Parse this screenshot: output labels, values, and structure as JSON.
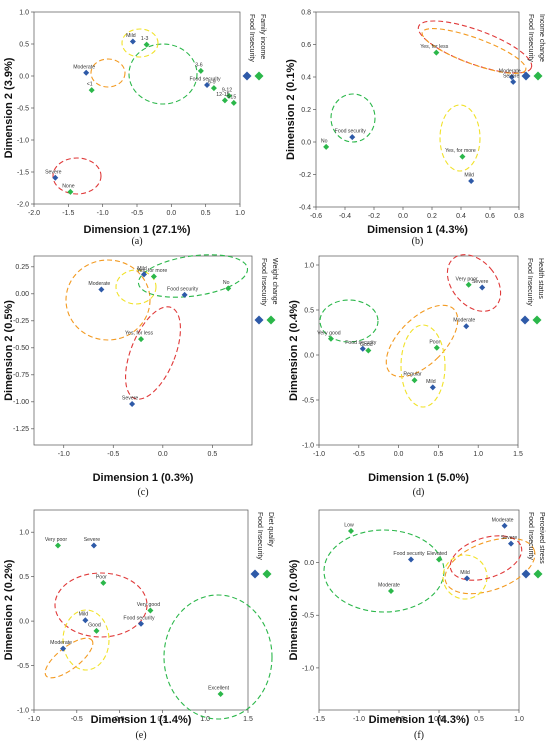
{
  "colors": {
    "food_insecurity": "#2e5aa8",
    "other_variable": "#2bb74a"
  },
  "chart_data": [
    {
      "panel": "(a)",
      "type": "scatter",
      "xlabel": "Dimension  1 (27.1%)",
      "ylabel": "Dimension  2 (3.9%)",
      "xlim": [
        -2.0,
        1.0
      ],
      "ylim": [
        -2.0,
        1.0
      ],
      "xticks": [
        "-2.0",
        "-1.5",
        "-1.0",
        "-0.5",
        "0.0",
        "0.5",
        "1.0"
      ],
      "yticks": [
        "1.0",
        "0.5",
        "0.0",
        "-0.5",
        "-1.0",
        "-1.5",
        "-2.0"
      ],
      "legend": [
        "Food Insecurity",
        "Family income"
      ],
      "series": [
        {
          "name": "Food Insecurity",
          "points": [
            {
              "label": "Mild",
              "x": -0.56,
              "y": 0.54
            },
            {
              "label": "Moderate",
              "x": -1.24,
              "y": 0.05
            },
            {
              "label": "Food security",
              "x": 0.52,
              "y": -0.14
            },
            {
              "label": "Severe",
              "x": -1.69,
              "y": -1.59
            }
          ]
        },
        {
          "name": "Family income",
          "points": [
            {
              "label": "1-3",
              "x": -0.36,
              "y": 0.49
            },
            {
              "label": "<1",
              "x": -1.16,
              "y": -0.22
            },
            {
              "label": "3-6",
              "x": 0.43,
              "y": 0.08
            },
            {
              "label": "6-9",
              "x": 0.62,
              "y": -0.19
            },
            {
              "label": "9-12",
              "x": 0.84,
              "y": -0.31
            },
            {
              "label": "12-15",
              "x": 0.78,
              "y": -0.38
            },
            {
              "label": ">15",
              "x": 0.91,
              "y": -0.42
            },
            {
              "label": "None",
              "x": -1.47,
              "y": -1.81
            }
          ]
        }
      ]
    },
    {
      "panel": "(b)",
      "type": "scatter",
      "xlabel": "Dimension  1 (4.3%)",
      "ylabel": "Dimension  2 (0.1%)",
      "xlim": [
        -0.6,
        0.8
      ],
      "ylim": [
        -0.4,
        0.8
      ],
      "xticks": [
        "-0.6",
        "-0.4",
        "-0.2",
        "0.0",
        "0.2",
        "0.4",
        "0.6",
        "0.8"
      ],
      "yticks": [
        "0.8",
        "0.6",
        "0.4",
        "0.2",
        "0.0",
        "-0.2",
        "-0.4"
      ],
      "legend": [
        "Food Insecurity",
        "Income change"
      ],
      "series": [
        {
          "name": "Food Insecurity",
          "points": [
            {
              "label": "Moderate",
              "x": 0.75,
              "y": 0.4
            },
            {
              "label": "Food security",
              "x": -0.35,
              "y": 0.03
            },
            {
              "label": "Mild",
              "x": 0.47,
              "y": -0.24
            },
            {
              "label": "Severe",
              "x": 0.76,
              "y": 0.37
            }
          ]
        },
        {
          "name": "Income change",
          "points": [
            {
              "label": "Yes, for less",
              "x": 0.23,
              "y": 0.55
            },
            {
              "label": "No",
              "x": -0.53,
              "y": -0.03
            },
            {
              "label": "Yes, for more",
              "x": 0.41,
              "y": -0.09
            }
          ]
        }
      ]
    },
    {
      "panel": "(c)",
      "type": "scatter",
      "xlabel": "Dimension  1 (0.3%)",
      "ylabel": "Dimension  2 (0.5%)",
      "xlim": [
        -1.3,
        0.9
      ],
      "ylim": [
        -1.4,
        0.35
      ],
      "xticks": [
        "-1.0",
        "-0.5",
        "0.0",
        "0.5"
      ],
      "yticks": [
        "0.25",
        "0.00",
        "-0.25",
        "-0.50",
        "-0.75",
        "-1.00",
        "-1.25"
      ],
      "legend": [
        "Food Insecurity",
        "Weight change"
      ],
      "series": [
        {
          "name": "Food Insecurity",
          "points": [
            {
              "label": "Mild",
              "x": -0.19,
              "y": 0.18
            },
            {
              "label": "Moderate",
              "x": -0.62,
              "y": 0.04
            },
            {
              "label": "Food security",
              "x": 0.22,
              "y": -0.01
            },
            {
              "label": "Severe",
              "x": -0.31,
              "y": -1.02
            }
          ]
        },
        {
          "name": "Weight change",
          "points": [
            {
              "label": "Yes, for more",
              "x": -0.09,
              "y": 0.16
            },
            {
              "label": "No",
              "x": 0.66,
              "y": 0.05
            },
            {
              "label": "Yes, for less",
              "x": -0.22,
              "y": -0.42
            }
          ]
        }
      ]
    },
    {
      "panel": "(d)",
      "type": "scatter",
      "xlabel": "Dimension  1 (5.0%)",
      "ylabel": "Dimension  2 (0.4%)",
      "xlim": [
        -1.0,
        1.5
      ],
      "ylim": [
        -1.0,
        1.1
      ],
      "xticks": [
        "-1.0",
        "-0.5",
        "0.0",
        "0.5",
        "1.0",
        "1.5"
      ],
      "yticks": [
        "1.0",
        "0.5",
        "0.0",
        "-0.5",
        "-1.0"
      ],
      "legend": [
        "Food Insecurity",
        "Health status"
      ],
      "series": [
        {
          "name": "Food Insecurity",
          "points": [
            {
              "label": "Severe",
              "x": 1.05,
              "y": 0.75
            },
            {
              "label": "Moderate",
              "x": 0.85,
              "y": 0.32
            },
            {
              "label": "Food security",
              "x": -0.45,
              "y": 0.07
            },
            {
              "label": "Mild",
              "x": 0.43,
              "y": -0.36
            }
          ]
        },
        {
          "name": "Health status",
          "points": [
            {
              "label": "Very poor",
              "x": 0.88,
              "y": 0.78
            },
            {
              "label": "Very good",
              "x": -0.85,
              "y": 0.18
            },
            {
              "label": "Good",
              "x": -0.38,
              "y": 0.05
            },
            {
              "label": "Poor",
              "x": 0.48,
              "y": 0.08
            },
            {
              "label": "Regular",
              "x": 0.2,
              "y": -0.28
            }
          ]
        }
      ]
    },
    {
      "panel": "(e)",
      "type": "scatter",
      "xlabel": "Dimension  1 (1.4%)",
      "ylabel": "Dimension  2 (0.2%)",
      "xlim": [
        -1.0,
        1.5
      ],
      "ylim": [
        -1.0,
        1.25
      ],
      "xticks": [
        "-1.0",
        "-0.5",
        "0.0",
        "0.5",
        "1.0",
        "1.5"
      ],
      "yticks": [
        "1.0",
        "0.5",
        "0.0",
        "-0.5",
        "-1.0"
      ],
      "legend": [
        "Food Insecurity",
        "Diet quality"
      ],
      "series": [
        {
          "name": "Food Insecurity",
          "points": [
            {
              "label": "Severe",
              "x": -0.3,
              "y": 0.85
            },
            {
              "label": "Mild",
              "x": -0.4,
              "y": 0.01
            },
            {
              "label": "Food security",
              "x": 0.25,
              "y": -0.03
            },
            {
              "label": "Moderate",
              "x": -0.66,
              "y": -0.31
            }
          ]
        },
        {
          "name": "Diet quality",
          "points": [
            {
              "label": "Very poor",
              "x": -0.72,
              "y": 0.85
            },
            {
              "label": "Poor",
              "x": -0.19,
              "y": 0.43
            },
            {
              "label": "Good",
              "x": -0.27,
              "y": -0.11
            },
            {
              "label": "Very good",
              "x": 0.36,
              "y": 0.12
            },
            {
              "label": "Excellent",
              "x": 1.18,
              "y": -0.82
            }
          ]
        }
      ]
    },
    {
      "panel": "(f)",
      "type": "scatter",
      "xlabel": "Dimension  1 (4.3%)",
      "ylabel": "Dimension  2 (0.0%)",
      "xlim": [
        -1.5,
        1.0
      ],
      "ylim": [
        -1.4,
        0.5
      ],
      "xticks": [
        "-1.5",
        "-1.0",
        "-0.5",
        "0.0",
        "0.5",
        "1.0"
      ],
      "yticks": [
        "0.0",
        "-0.5",
        "-1.0"
      ],
      "legend": [
        "Food Insecurity",
        "Perceived stress"
      ],
      "series": [
        {
          "name": "Food Insecurity",
          "points": [
            {
              "label": "Moderate",
              "x": 0.82,
              "y": 0.35
            },
            {
              "label": "Food security",
              "x": -0.35,
              "y": 0.03
            },
            {
              "label": "Severe",
              "x": 0.9,
              "y": 0.18
            },
            {
              "label": "Mild",
              "x": 0.35,
              "y": -0.15
            }
          ]
        },
        {
          "name": "Perceived stress",
          "points": [
            {
              "label": "Low",
              "x": -1.1,
              "y": 0.3
            },
            {
              "label": "Elevated",
              "x": 0.0,
              "y": 0.03
            },
            {
              "label": "Moderate",
              "x": -0.6,
              "y": -0.27
            }
          ]
        }
      ]
    }
  ]
}
